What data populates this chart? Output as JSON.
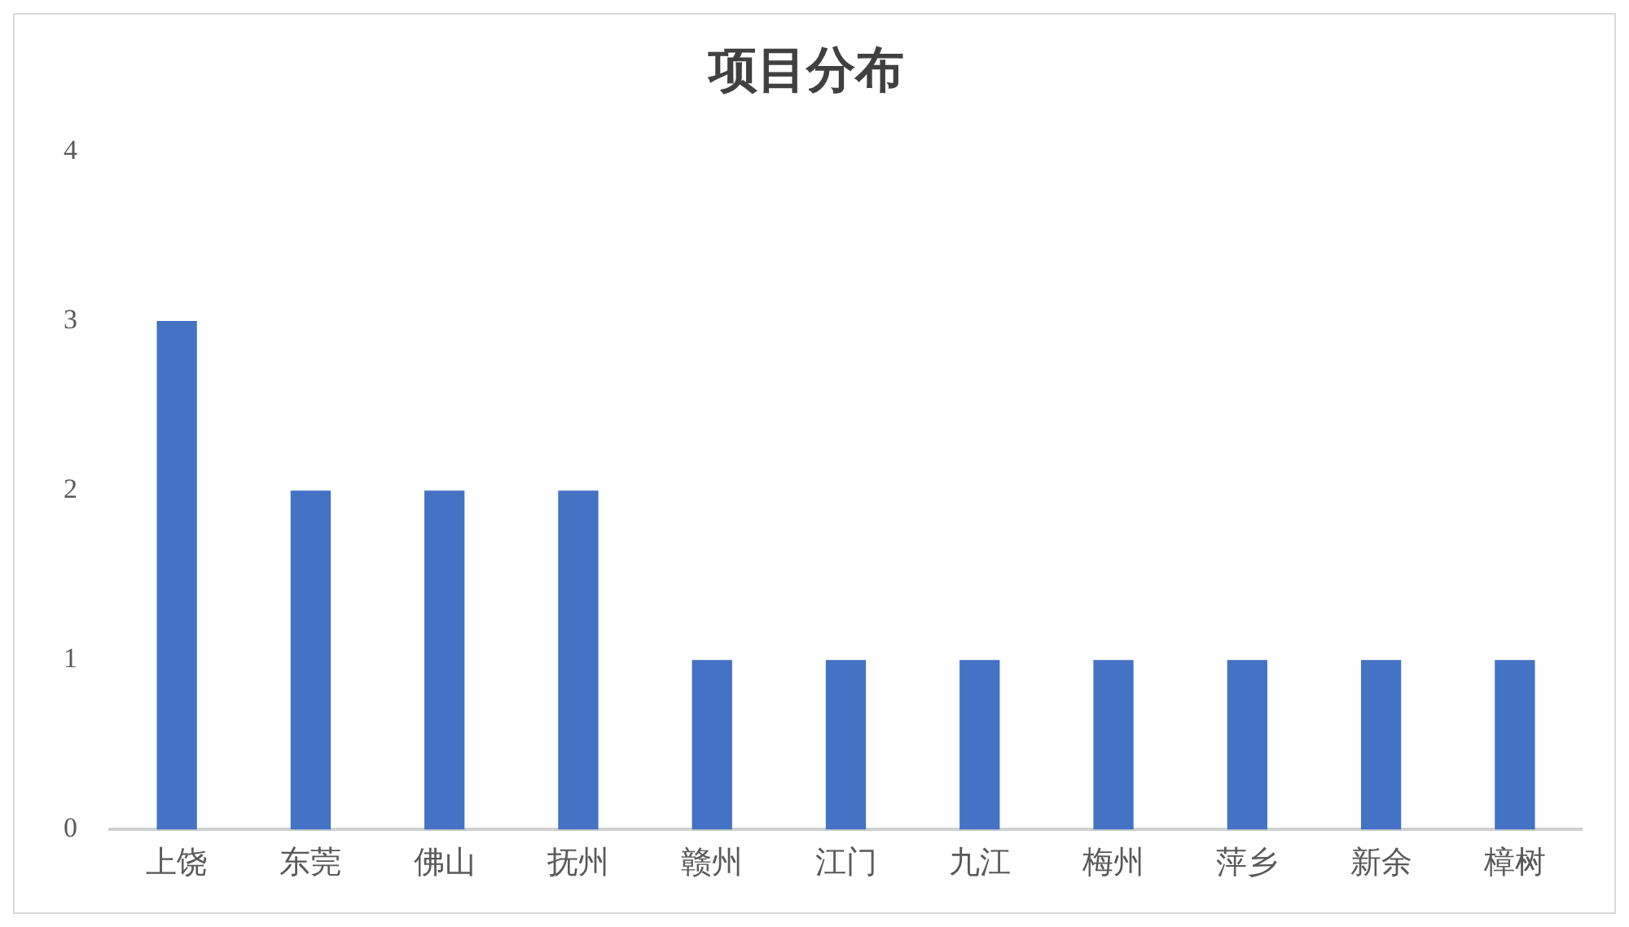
{
  "chart_data": {
    "type": "bar",
    "title": "项目分布",
    "categories": [
      "上饶",
      "东莞",
      "佛山",
      "抚州",
      "赣州",
      "江门",
      "九江",
      "梅州",
      "萍乡",
      "新余",
      "樟树"
    ],
    "values": [
      3,
      2,
      2,
      2,
      1,
      1,
      1,
      1,
      1,
      1,
      1
    ],
    "color": "#4472c4",
    "ylim": [
      0,
      4
    ],
    "yticks": [
      0,
      1,
      2,
      3,
      4
    ],
    "grid": false,
    "legend": false
  }
}
